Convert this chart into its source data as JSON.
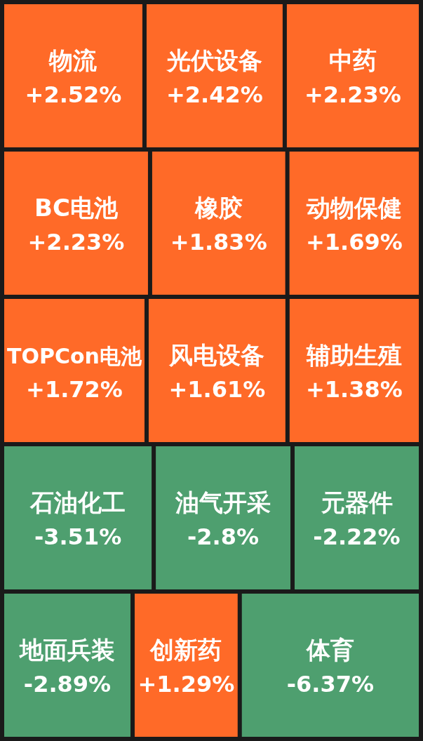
{
  "chart_data": {
    "type": "other",
    "categories": [
      "物流",
      "光伏设备",
      "中药",
      "BC电池",
      "橡胶",
      "动物保健",
      "TOPCon电池",
      "风电设备",
      "辅助生殖",
      "石油化工",
      "油气开采",
      "元器件",
      "地面兵装",
      "创新药",
      "体育"
    ],
    "values": [
      2.52,
      2.42,
      2.23,
      2.23,
      1.83,
      1.69,
      1.72,
      1.61,
      1.38,
      -3.51,
      -2.8,
      -2.22,
      -2.89,
      1.29,
      -6.37
    ],
    "value_labels": [
      "+2.52%",
      "+2.42%",
      "+2.23%",
      "+2.23%",
      "+1.83%",
      "+1.69%",
      "+1.72%",
      "+1.61%",
      "+1.38%",
      "-3.51%",
      "-2.8%",
      "-2.22%",
      "-2.89%",
      "+1.29%",
      "-6.37%"
    ],
    "colors": [
      "#ff6a28",
      "#ff6a28",
      "#ff6a28",
      "#ff6a28",
      "#ff6a28",
      "#ff6a28",
      "#ff6a28",
      "#ff6a28",
      "#ff6a28",
      "#4e9f6f",
      "#4e9f6f",
      "#4e9f6f",
      "#4e9f6f",
      "#ff6a28",
      "#4e9f6f"
    ]
  }
}
